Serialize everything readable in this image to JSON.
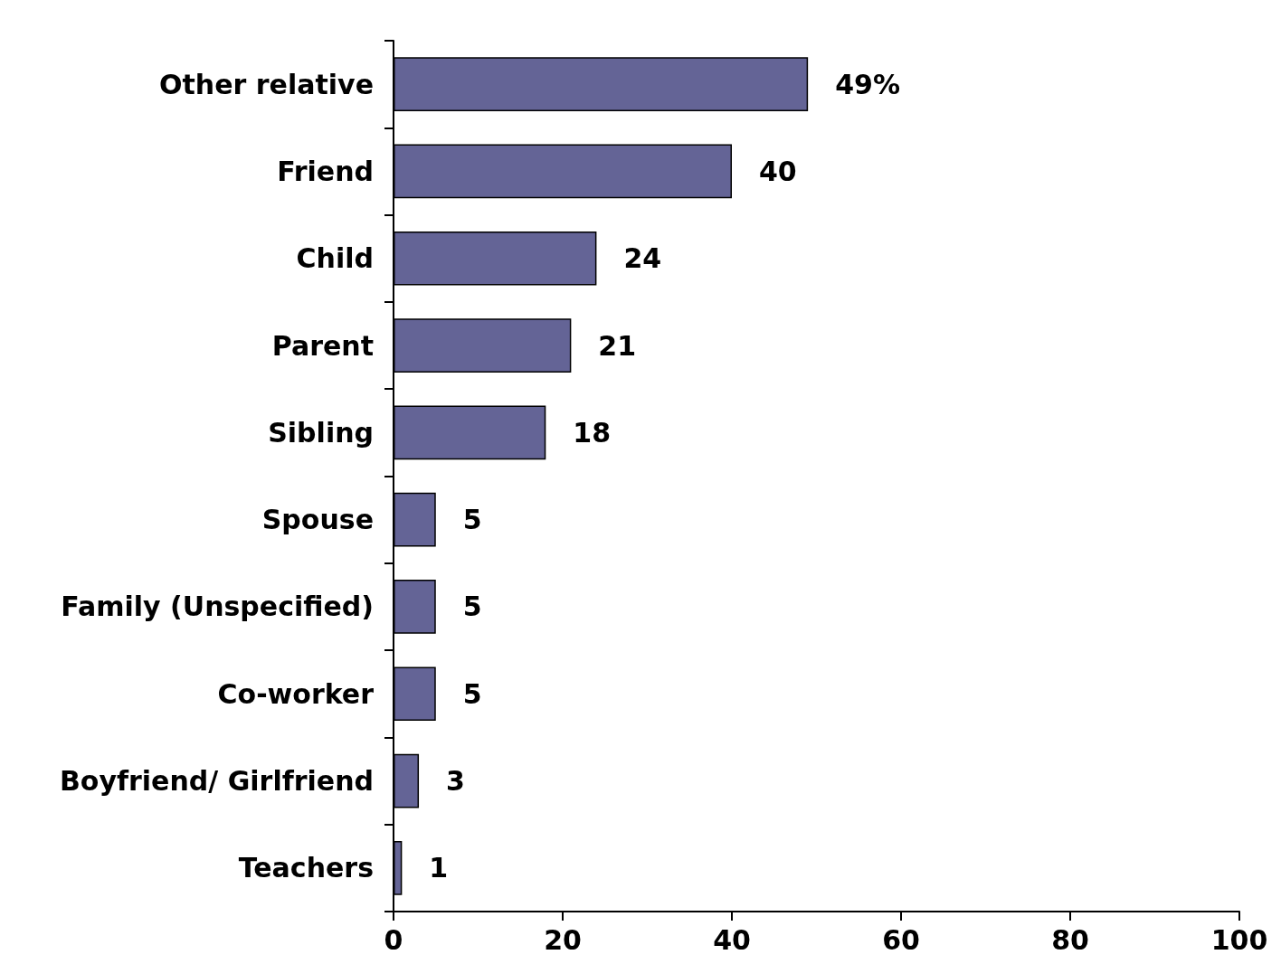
{
  "chart_data": {
    "type": "bar",
    "orientation": "horizontal",
    "categories": [
      "Other relative",
      "Friend",
      "Child",
      "Parent",
      "Sibling",
      "Spouse",
      "Family (Unspecified)",
      "Co-worker",
      "Boyfriend/ Girlfriend",
      "Teachers"
    ],
    "values": [
      49,
      40,
      24,
      21,
      18,
      5,
      5,
      5,
      3,
      1
    ],
    "value_labels": [
      "49%",
      "40",
      "24",
      "21",
      "18",
      "5",
      "5",
      "5",
      "3",
      "1"
    ],
    "color": "#646496",
    "xlim": [
      0,
      100
    ],
    "xticks": [
      0,
      20,
      40,
      60,
      80,
      100
    ]
  }
}
